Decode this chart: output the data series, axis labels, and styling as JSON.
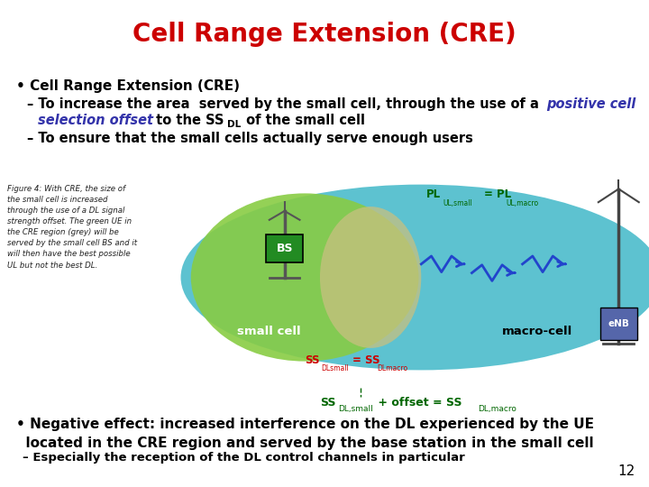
{
  "title": "Cell Range Extension (CRE)",
  "title_color": "#CC0000",
  "title_fontsize": 20,
  "bg_color": "#FFFFFF",
  "text_color_black": "#000000",
  "text_color_blue_italic": "#3333AA",
  "text_color_green": "#006600",
  "text_color_red": "#CC0000",
  "page_number": "12",
  "fig_caption": "Figure 4: With CRE, the size of\nthe small cell is increased\nthrough the use of a DL signal\nstrength offset. The green UE in\nthe CRE region (grey) will be\nserved by the small cell BS and it\nwill then have the best possible\nUL but not the best DL.",
  "macro_color": "#40B8C8",
  "small_color": "#88CC44",
  "cre_color": "#C8C080",
  "macro_label": "macro-cell",
  "small_label": "small cell"
}
